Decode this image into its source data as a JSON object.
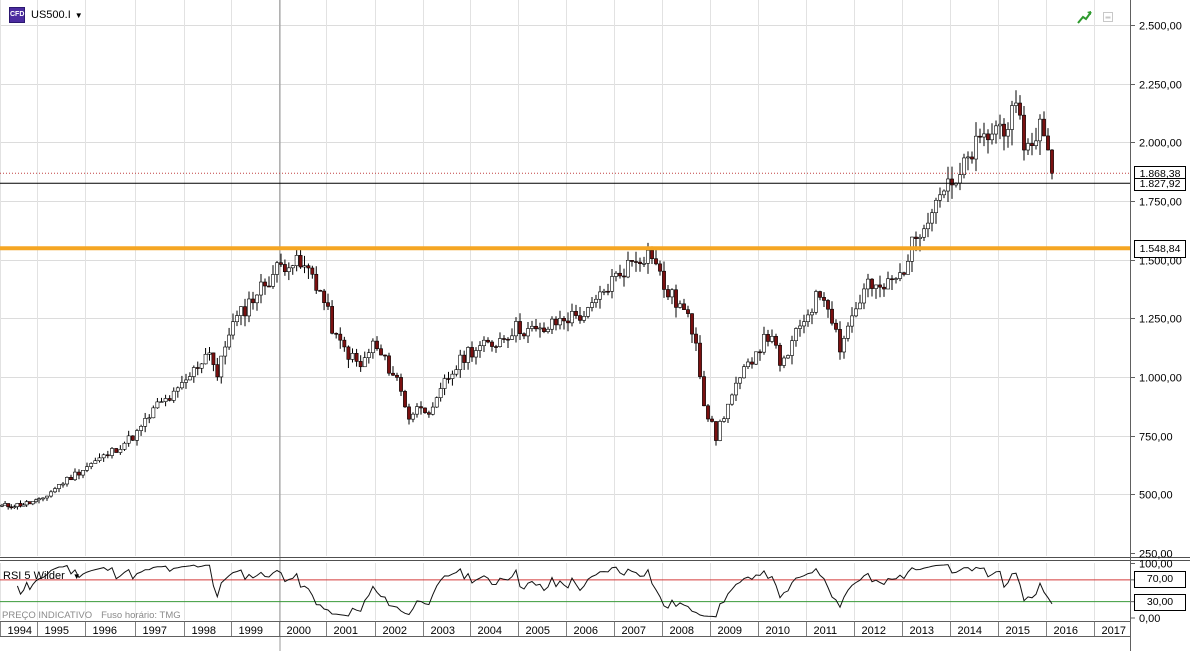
{
  "header": {
    "symbol": "US500.I",
    "symbol_icon": "cfd-instrument-icon"
  },
  "toolbar_icons": [
    "trend-arrow-icon",
    "minimize-icon"
  ],
  "price_axis": {
    "ticks": [
      "2.500,00",
      "2.250,00",
      "2.000,00",
      "1.750,00",
      "1.500,00",
      "1.250,00",
      "1.000,00",
      "750,00",
      "500,00",
      "250,00"
    ]
  },
  "rsi_axis": {
    "ticks": [
      "100,00",
      "70,00",
      "30,00",
      "0,00"
    ]
  },
  "time_axis": {
    "labels": [
      "1994",
      "1995",
      "1996",
      "1997",
      "1998",
      "1999",
      "2000",
      "2001",
      "2002",
      "2003",
      "2004",
      "2005",
      "2006",
      "2007",
      "2008",
      "2009",
      "2010",
      "2011",
      "2012",
      "2013",
      "2014",
      "2015",
      "2016",
      "2017"
    ]
  },
  "price_tags": {
    "last": "1.868,38",
    "crosshair": "1.827,92",
    "support": "1.548,84"
  },
  "rsi_panel": {
    "label": "RSI 5 Wilder",
    "upper": "70,00",
    "lower": "30,00"
  },
  "footer": {
    "indicative": "PREÇO INDICATIVO",
    "timezone": "Fuso horário: TMG"
  },
  "colors": {
    "support_line": "#f5a623",
    "rsi_upper": "#d43a3a",
    "rsi_lower": "#3a9a3a",
    "bear_candle": "#7a1010",
    "bull_candle": "#ffffff"
  },
  "chart_data": {
    "type": "candlestick",
    "interval": "monthly",
    "y_scale": [
      250,
      2600
    ],
    "x_range": [
      "1994",
      "2017"
    ],
    "horizontal_lines": [
      1548.84,
      1827.92,
      1868.38
    ],
    "anchors": [
      [
        "1994-01",
        450
      ],
      [
        "1994-06",
        455
      ],
      [
        "1995-01",
        470
      ],
      [
        "1995-06",
        540
      ],
      [
        "1996-01",
        620
      ],
      [
        "1996-06",
        670
      ],
      [
        "1997-01",
        760
      ],
      [
        "1997-06",
        880
      ],
      [
        "1997-10",
        920
      ],
      [
        "1998-01",
        980
      ],
      [
        "1998-07",
        1120
      ],
      [
        "1998-09",
        1000
      ],
      [
        "1998-12",
        1200
      ],
      [
        "1999-06",
        1340
      ],
      [
        "1999-12",
        1460
      ],
      [
        "2000-03",
        1500
      ],
      [
        "2000-09",
        1440
      ],
      [
        "2000-12",
        1320
      ],
      [
        "2001-03",
        1160
      ],
      [
        "2001-09",
        1040
      ],
      [
        "2001-12",
        1140
      ],
      [
        "2002-06",
        990
      ],
      [
        "2002-09",
        830
      ],
      [
        "2002-12",
        880
      ],
      [
        "2003-03",
        850
      ],
      [
        "2003-06",
        975
      ],
      [
        "2003-12",
        1110
      ],
      [
        "2004-06",
        1140
      ],
      [
        "2004-12",
        1210
      ],
      [
        "2005-06",
        1190
      ],
      [
        "2005-12",
        1250
      ],
      [
        "2006-06",
        1270
      ],
      [
        "2006-12",
        1410
      ],
      [
        "2007-06",
        1510
      ],
      [
        "2007-10",
        1530
      ],
      [
        "2008-01",
        1380
      ],
      [
        "2008-06",
        1280
      ],
      [
        "2008-09",
        1165
      ],
      [
        "2008-11",
        890
      ],
      [
        "2009-02",
        740
      ],
      [
        "2009-03",
        800
      ],
      [
        "2009-06",
        920
      ],
      [
        "2009-12",
        1115
      ],
      [
        "2010-04",
        1190
      ],
      [
        "2010-06",
        1030
      ],
      [
        "2010-12",
        1250
      ],
      [
        "2011-04",
        1360
      ],
      [
        "2011-06",
        1320
      ],
      [
        "2011-09",
        1130
      ],
      [
        "2011-12",
        1260
      ],
      [
        "2012-04",
        1400
      ],
      [
        "2012-06",
        1360
      ],
      [
        "2012-12",
        1430
      ],
      [
        "2013-05",
        1640
      ],
      [
        "2013-12",
        1845
      ],
      [
        "2014-01",
        1780
      ],
      [
        "2014-06",
        1960
      ],
      [
        "2014-12",
        2060
      ],
      [
        "2015-05",
        2110
      ],
      [
        "2015-08",
        1970
      ],
      [
        "2015-11",
        2080
      ],
      [
        "2016-01",
        1940
      ],
      [
        "2016-02",
        1868
      ]
    ],
    "rsi": {
      "period": 5,
      "type": "Wilder",
      "levels": [
        70,
        30
      ],
      "range": [
        0,
        100
      ]
    }
  }
}
